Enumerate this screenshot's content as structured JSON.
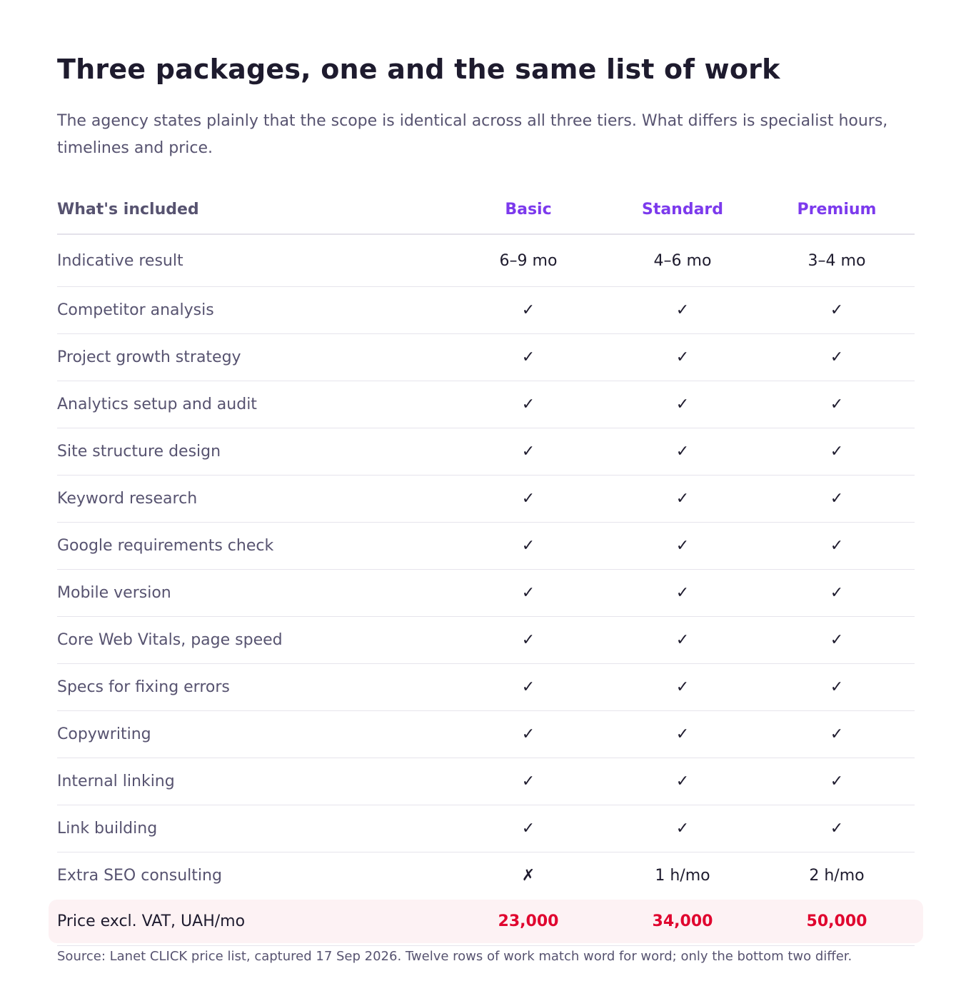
{
  "title": "Three packages, one and the same list of work",
  "subtitle": "The agency states plainly that the scope is identical across all three tiers. What differs is specialist hours, timelines and price.",
  "table": {
    "columns": [
      "What's included",
      "Basic",
      "Standard",
      "Premium"
    ],
    "rows": [
      {
        "label": "Indicative result",
        "values": [
          "6–9 mo",
          "4–6 mo",
          "3–4 mo"
        ]
      },
      {
        "label": "Competitor analysis",
        "values": [
          "✓",
          "✓",
          "✓"
        ]
      },
      {
        "label": "Project growth strategy",
        "values": [
          "✓",
          "✓",
          "✓"
        ]
      },
      {
        "label": "Analytics setup and audit",
        "values": [
          "✓",
          "✓",
          "✓"
        ]
      },
      {
        "label": "Site structure design",
        "values": [
          "✓",
          "✓",
          "✓"
        ]
      },
      {
        "label": "Keyword research",
        "values": [
          "✓",
          "✓",
          "✓"
        ]
      },
      {
        "label": "Google requirements check",
        "values": [
          "✓",
          "✓",
          "✓"
        ]
      },
      {
        "label": "Mobile version",
        "values": [
          "✓",
          "✓",
          "✓"
        ]
      },
      {
        "label": "Core Web Vitals, page speed",
        "values": [
          "✓",
          "✓",
          "✓"
        ]
      },
      {
        "label": "Specs for fixing errors",
        "values": [
          "✓",
          "✓",
          "✓"
        ]
      },
      {
        "label": "Copywriting",
        "values": [
          "✓",
          "✓",
          "✓"
        ]
      },
      {
        "label": "Internal linking",
        "values": [
          "✓",
          "✓",
          "✓"
        ]
      },
      {
        "label": "Link building",
        "values": [
          "✓",
          "✓",
          "✓"
        ]
      },
      {
        "label": "Extra SEO consulting",
        "values": [
          "✗",
          "1 h/mo",
          "2 h/mo"
        ]
      }
    ],
    "price_row": {
      "label": "Price excl. VAT, UAH/mo",
      "values": [
        "23,000",
        "34,000",
        "50,000"
      ]
    }
  },
  "source": "Source: Lanet CLICK price list, captured 17 Sep 2026. Twelve rows of work match word for word; only the bottom two differ.",
  "colors": {
    "tier_header": "#7c3aed",
    "price_value": "#e0062f",
    "price_row_background": "#fdf2f4"
  }
}
